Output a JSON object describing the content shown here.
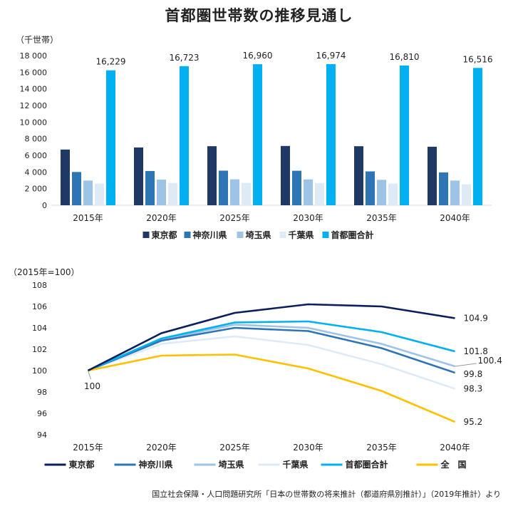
{
  "title": "首都圏世帯数の推移見通し",
  "source": "国立社会保障・人口問題研究所「日本の世帯数の将来推計（都道府県別推計）」（2019年推計）より",
  "chart_data": [
    {
      "type": "bar",
      "unit_label": "（千世帯）",
      "categories": [
        "2015年",
        "2020年",
        "2025年",
        "2030年",
        "2035年",
        "2040年"
      ],
      "ylim": [
        0,
        18000
      ],
      "yticks": [
        0,
        2000,
        4000,
        6000,
        8000,
        10000,
        12000,
        14000,
        16000,
        18000
      ],
      "ytick_labels": [
        "0",
        "2 000",
        "4 000",
        "6 000",
        "8 000",
        "10 000",
        "12 000",
        "14 000",
        "16 000",
        "18 000"
      ],
      "grid": false,
      "legend_position": "bottom",
      "series": [
        {
          "name": "東京都",
          "color": "#1f3864",
          "values": [
            6700,
            6950,
            7100,
            7130,
            7100,
            7040
          ]
        },
        {
          "name": "神奈川県",
          "color": "#2e75b6",
          "values": [
            4000,
            4120,
            4160,
            4150,
            4070,
            3950
          ]
        },
        {
          "name": "埼玉県",
          "color": "#9dc3e6",
          "values": [
            2970,
            3080,
            3120,
            3110,
            3060,
            2970
          ]
        },
        {
          "name": "千葉県",
          "color": "#deebf7",
          "values": [
            2600,
            2680,
            2690,
            2660,
            2600,
            2520
          ]
        },
        {
          "name": "首都圏合計",
          "color": "#00b0f0",
          "values": [
            16229,
            16723,
            16960,
            16974,
            16810,
            16516
          ]
        }
      ],
      "data_labels": [
        "16,229",
        "16,723",
        "16,960",
        "16,974",
        "16,810",
        "16,516"
      ]
    },
    {
      "type": "line",
      "unit_label": "（2015年=100）",
      "categories": [
        "2015年",
        "2020年",
        "2025年",
        "2030年",
        "2035年",
        "2040年"
      ],
      "ylim": [
        94,
        108
      ],
      "yticks": [
        94,
        96,
        98,
        100,
        102,
        104,
        106,
        108
      ],
      "grid": false,
      "legend_position": "bottom",
      "series": [
        {
          "name": "東京都",
          "color": "#0b1f5c",
          "values": [
            100,
            103.5,
            105.4,
            106.2,
            106.0,
            104.9
          ],
          "end_label": "104.9"
        },
        {
          "name": "神奈川県",
          "color": "#2e75b6",
          "values": [
            100,
            102.8,
            104.0,
            103.7,
            102.1,
            99.8
          ],
          "end_label": "99.8"
        },
        {
          "name": "埼玉県",
          "color": "#9dc3e6",
          "values": [
            100,
            102.9,
            104.3,
            104.0,
            102.5,
            100.4
          ],
          "end_label": "100.4"
        },
        {
          "name": "千葉県",
          "color": "#deebf7",
          "values": [
            100,
            102.5,
            103.2,
            102.4,
            100.6,
            98.3
          ],
          "end_label": "98.3"
        },
        {
          "name": "首都圏合計",
          "color": "#00b0f0",
          "values": [
            100,
            103.0,
            104.5,
            104.6,
            103.6,
            101.8
          ],
          "end_label": "101.8"
        },
        {
          "name": "全　国",
          "color": "#ffc000",
          "values": [
            100,
            101.4,
            101.5,
            100.2,
            98.1,
            95.2
          ],
          "end_label": "95.2"
        }
      ],
      "start_label": "100"
    }
  ]
}
